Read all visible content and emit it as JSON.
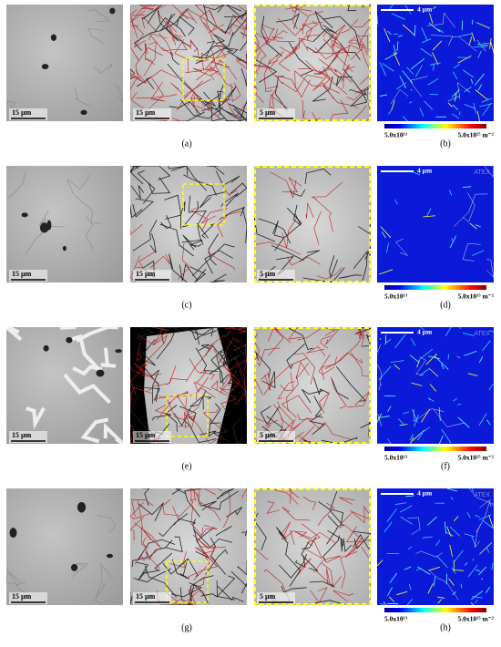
{
  "rows": [
    {
      "scale_bars": [
        "15 µm",
        "15 µm",
        "5 µm",
        "4 µm"
      ],
      "colorbar": {
        "min": "5.0x10¹³",
        "max": "5.0x10¹⁵ m⁻²"
      },
      "labels": [
        "(a)",
        "(b)"
      ]
    },
    {
      "scale_bars": [
        "15 µm",
        "15 µm",
        "5 µm",
        "4 µm"
      ],
      "watermark": "ATEX",
      "colorbar": {
        "min": "5.0x10¹³",
        "max": "5.0x10¹⁵ m⁻²"
      },
      "labels": [
        "(c)",
        "(d)"
      ]
    },
    {
      "scale_bars": [
        "15 µm",
        "15 µm",
        "5 µm",
        "4 µm"
      ],
      "watermark": "ATEX",
      "colorbar": {
        "min": "5.0x10¹³",
        "max": "5.0x10¹⁵ m⁻²"
      },
      "labels": [
        "(e)",
        "(f)"
      ]
    },
    {
      "scale_bars": [
        "15 µm",
        "15 µm",
        "5 µm",
        "4 µm"
      ],
      "watermark": "ATEX",
      "colorbar": {
        "min": "5.0x10¹³",
        "max": "5.0x10¹⁵ m⁻²"
      },
      "labels": [
        "(g)",
        "(h)"
      ]
    }
  ]
}
